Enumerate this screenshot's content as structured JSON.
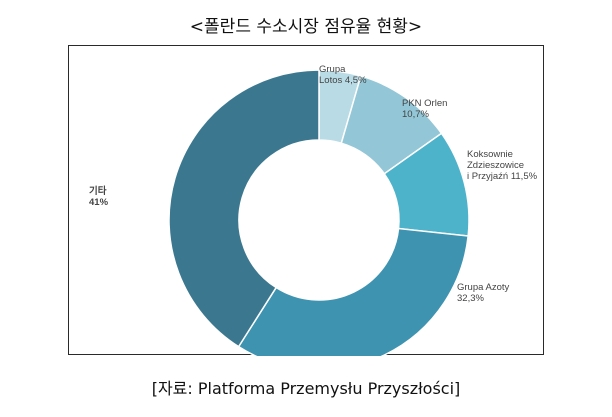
{
  "title": "<폴란드 수소시장 점유율 현황>",
  "source": "[자료: Platforma Przemysłu Przyszłości]",
  "chart_data": {
    "type": "pie",
    "donut": true,
    "title": "<폴란드 수소시장 점유율 현황>",
    "legend": "none",
    "slices": [
      {
        "label_lines": [
          "Grupa",
          "Lotos 4,5%"
        ],
        "value": 4.5,
        "color": "#b9dbe5"
      },
      {
        "label_lines": [
          "PKN Orlen",
          "10,7%"
        ],
        "value": 10.7,
        "color": "#93c6d6"
      },
      {
        "label_lines": [
          "Koksownie",
          "Zdzieszowice",
          "i Przyjaźń 11,5%"
        ],
        "value": 11.5,
        "color": "#4db3cb"
      },
      {
        "label_lines": [
          "Grupa Azoty",
          "32,3%"
        ],
        "value": 32.3,
        "color": "#3d93b0"
      },
      {
        "label_lines": [
          "기타",
          "41%"
        ],
        "value": 41,
        "color": "#3b7890"
      }
    ]
  }
}
